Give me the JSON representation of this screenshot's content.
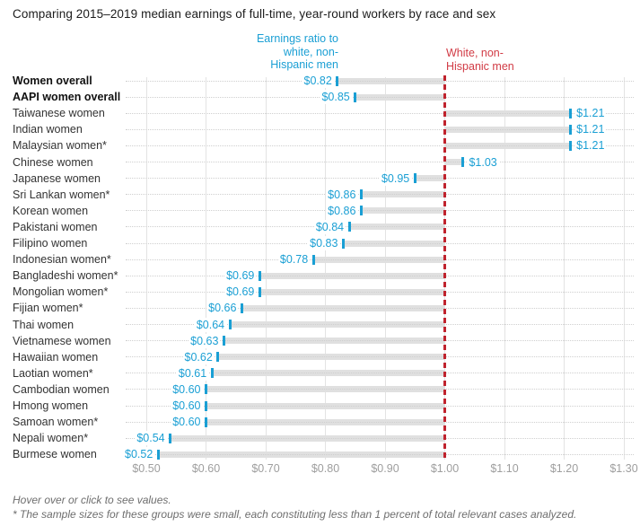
{
  "title": "Comparing 2015–2019 median earnings of full-time, year-round workers by race and sex",
  "annotations": {
    "ratio_label": "Earnings ratio to\nwhite, non-\nHispanic men",
    "reference_label": "White, non-\nHispanic men"
  },
  "footnotes": {
    "line1": "Hover over or click to see values.",
    "line2": "* The sample sizes for these groups were small, each constituting less than 1 percent of total relevant cases analyzed."
  },
  "colors": {
    "accent_blue": "#1a9fd4",
    "accent_red_text": "#d13b45",
    "accent_red_line": "#c0232d",
    "bar_gray": "#e0e0e0",
    "gridline_gray": "#e3e3e3",
    "axis_text_gray": "#9e9e9e"
  },
  "chart_data": {
    "type": "bar",
    "orientation": "horizontal",
    "title": "Comparing 2015–2019 median earnings of full-time, year-round workers by race and sex",
    "xlabel": "",
    "ylabel": "",
    "xlim": [
      0.5,
      1.3
    ],
    "grid": "vertical-solid-and-horizontal-dotted",
    "legend_position": "none",
    "reference": {
      "value": 1.0,
      "label": "White, non-Hispanic men"
    },
    "x_axis": {
      "ticks": [
        {
          "value": 0.5,
          "label": "$0.50"
        },
        {
          "value": 0.6,
          "label": "$0.60"
        },
        {
          "value": 0.7,
          "label": "$0.70"
        },
        {
          "value": 0.8,
          "label": "$0.80"
        },
        {
          "value": 0.9,
          "label": "$0.90"
        },
        {
          "value": 1.0,
          "label": "$1.00"
        },
        {
          "value": 1.1,
          "label": "$1.10"
        },
        {
          "value": 1.2,
          "label": "$1.20"
        },
        {
          "value": 1.3,
          "label": "$1.30"
        }
      ]
    },
    "rows": [
      {
        "label": "Women overall",
        "value": 0.82,
        "display": "$0.82",
        "bold": true
      },
      {
        "label": "AAPI women overall",
        "value": 0.85,
        "display": "$0.85",
        "bold": true
      },
      {
        "label": "Taiwanese women",
        "value": 1.21,
        "display": "$1.21",
        "bold": false
      },
      {
        "label": "Indian women",
        "value": 1.21,
        "display": "$1.21",
        "bold": false
      },
      {
        "label": "Malaysian women*",
        "value": 1.21,
        "display": "$1.21",
        "bold": false
      },
      {
        "label": "Chinese women",
        "value": 1.03,
        "display": "$1.03",
        "bold": false
      },
      {
        "label": "Japanese women",
        "value": 0.95,
        "display": "$0.95",
        "bold": false
      },
      {
        "label": "Sri Lankan women*",
        "value": 0.86,
        "display": "$0.86",
        "bold": false
      },
      {
        "label": "Korean women",
        "value": 0.86,
        "display": "$0.86",
        "bold": false
      },
      {
        "label": "Pakistani women",
        "value": 0.84,
        "display": "$0.84",
        "bold": false
      },
      {
        "label": "Filipino women",
        "value": 0.83,
        "display": "$0.83",
        "bold": false
      },
      {
        "label": "Indonesian women*",
        "value": 0.78,
        "display": "$0.78",
        "bold": false
      },
      {
        "label": "Bangladeshi women*",
        "value": 0.69,
        "display": "$0.69",
        "bold": false
      },
      {
        "label": "Mongolian women*",
        "value": 0.69,
        "display": "$0.69",
        "bold": false
      },
      {
        "label": "Fijian women*",
        "value": 0.66,
        "display": "$0.66",
        "bold": false
      },
      {
        "label": "Thai women",
        "value": 0.64,
        "display": "$0.64",
        "bold": false
      },
      {
        "label": "Vietnamese women",
        "value": 0.63,
        "display": "$0.63",
        "bold": false
      },
      {
        "label": "Hawaiian women",
        "value": 0.62,
        "display": "$0.62",
        "bold": false
      },
      {
        "label": "Laotian women*",
        "value": 0.61,
        "display": "$0.61",
        "bold": false
      },
      {
        "label": "Cambodian women",
        "value": 0.6,
        "display": "$0.60",
        "bold": false
      },
      {
        "label": "Hmong women",
        "value": 0.6,
        "display": "$0.60",
        "bold": false
      },
      {
        "label": "Samoan women*",
        "value": 0.6,
        "display": "$0.60",
        "bold": false
      },
      {
        "label": "Nepali women*",
        "value": 0.54,
        "display": "$0.54",
        "bold": false
      },
      {
        "label": "Burmese women",
        "value": 0.52,
        "display": "$0.52",
        "bold": false
      }
    ]
  }
}
